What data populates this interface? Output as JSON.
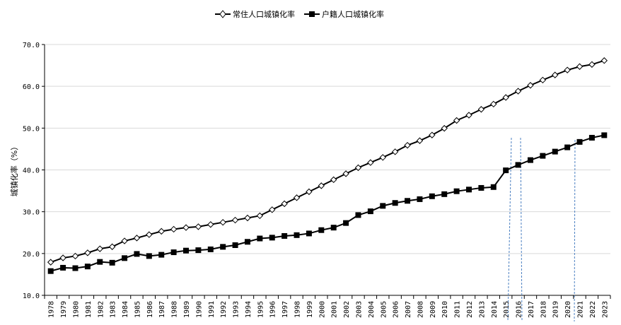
{
  "chart_data": {
    "type": "line",
    "title": "",
    "xlabel": "",
    "ylabel": "城镇化率（%）",
    "ylim": [
      10,
      70
    ],
    "yticks": [
      "10.0",
      "20.0",
      "30.0",
      "40.0",
      "50.0",
      "60.0",
      "70.0"
    ],
    "grid": true,
    "legend_position": "top-center",
    "categories": [
      "1978",
      "1979",
      "1980",
      "1981",
      "1982",
      "1983",
      "1984",
      "1985",
      "1986",
      "1987",
      "1988",
      "1989",
      "1990",
      "1991",
      "1992",
      "1993",
      "1994",
      "1995",
      "1996",
      "1997",
      "1998",
      "1999",
      "2000",
      "2001",
      "2002",
      "2003",
      "2004",
      "2005",
      "2006",
      "2007",
      "2008",
      "2009",
      "2010",
      "2011",
      "2012",
      "2013",
      "2014",
      "2015",
      "2016",
      "2017",
      "2018",
      "2019",
      "2020",
      "2021",
      "2022",
      "2023"
    ],
    "series": [
      {
        "name": "常住人口城镇化率",
        "marker": "diamond-open",
        "values": [
          17.92,
          18.96,
          19.39,
          20.16,
          21.13,
          21.62,
          23.01,
          23.71,
          24.52,
          25.32,
          25.81,
          26.21,
          26.41,
          26.94,
          27.46,
          27.99,
          28.51,
          29.04,
          30.48,
          31.91,
          33.35,
          34.78,
          36.22,
          37.66,
          39.09,
          40.53,
          41.76,
          42.99,
          44.34,
          45.89,
          46.99,
          48.34,
          49.95,
          51.83,
          53.1,
          54.49,
          55.75,
          57.33,
          58.84,
          60.24,
          61.5,
          62.71,
          63.89,
          64.72,
          65.22,
          66.16
        ]
      },
      {
        "name": "户籍人口城镇化率",
        "marker": "square-filled",
        "values": [
          15.8,
          16.6,
          16.5,
          16.9,
          18.0,
          17.8,
          18.9,
          19.9,
          19.4,
          19.7,
          20.3,
          20.7,
          20.8,
          21.0,
          21.6,
          22.0,
          22.8,
          23.6,
          23.8,
          24.2,
          24.4,
          24.8,
          25.6,
          26.2,
          27.3,
          29.2,
          30.1,
          31.4,
          32.1,
          32.6,
          33.0,
          33.7,
          34.2,
          34.9,
          35.3,
          35.7,
          35.9,
          39.9,
          41.2,
          42.35,
          43.37,
          44.38,
          45.4,
          46.7,
          47.7,
          48.3
        ]
      }
    ],
    "colors": {
      "line": "#000000",
      "grid": "#d9d9d9",
      "annotation": "#4a7fc1"
    }
  }
}
